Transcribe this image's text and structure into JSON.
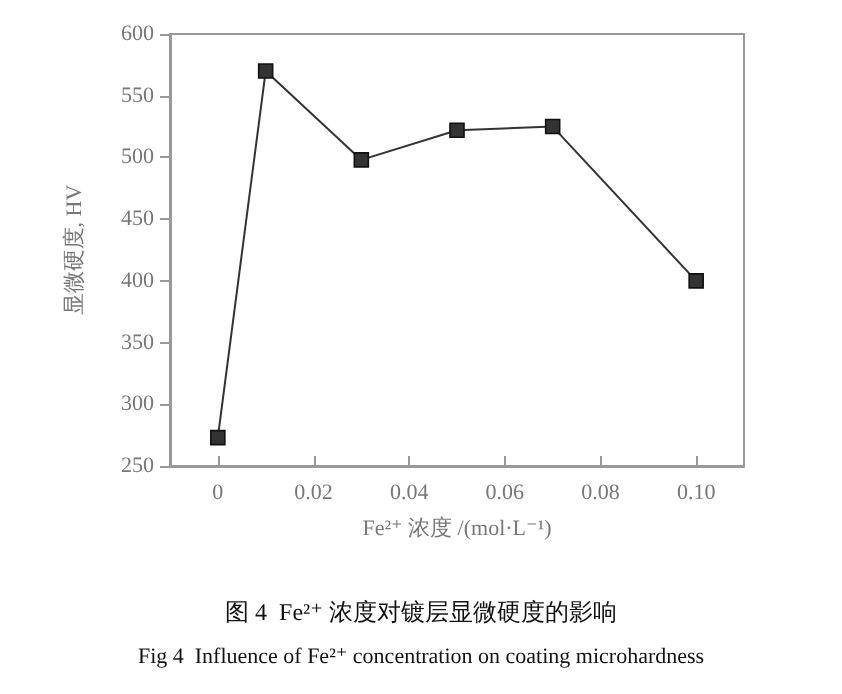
{
  "chart_data": {
    "type": "line",
    "title": "图 4  Fe²⁺ 浓度对镀层显微硬度的影响",
    "subtitle": "Fig 4  Influence of Fe²⁺ concentration on coating microhardness",
    "xlabel": "Fe²⁺ 浓度 /(mol·L⁻¹)",
    "ylabel": "显微硬度, HV",
    "x": [
      0,
      0.01,
      0.03,
      0.05,
      0.07,
      0.1
    ],
    "series": [
      {
        "color": "#333333",
        "values": [
          273,
          570,
          498,
          522,
          525,
          400
        ]
      }
    ],
    "xlim": [
      -0.01,
      0.11
    ],
    "xticks": [
      0,
      0.02,
      0.04,
      0.06,
      0.08,
      {
        "value": 0.1,
        "label": "0.10"
      }
    ],
    "ylim": [
      250,
      600
    ],
    "yticks": [
      250,
      300,
      350,
      400,
      450,
      500,
      550,
      600
    ],
    "marker": "square",
    "line_style": "solid",
    "grid": false
  }
}
